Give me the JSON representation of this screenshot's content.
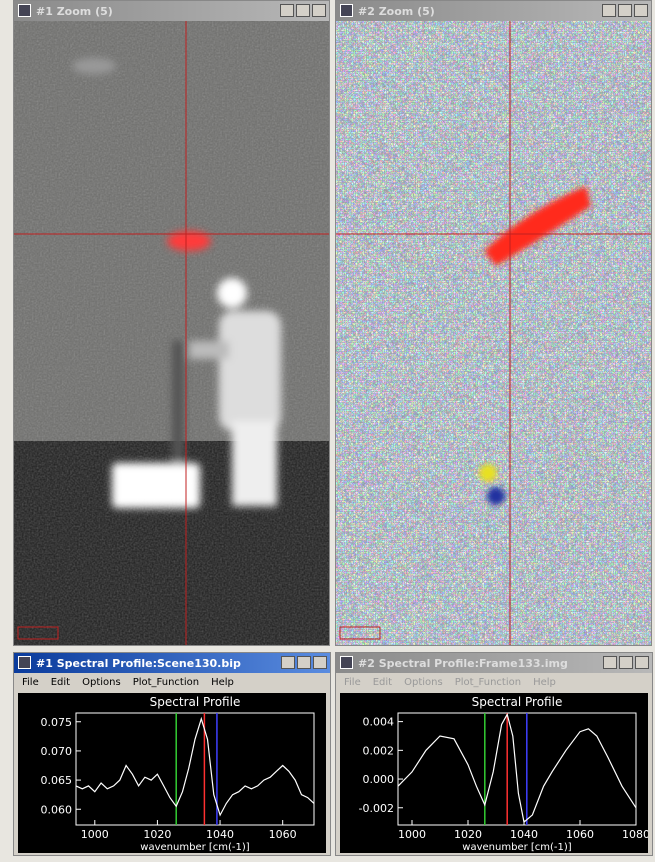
{
  "zoom_windows": [
    {
      "title": "#1 Zoom (5)"
    },
    {
      "title": "#2 Zoom (5)"
    }
  ],
  "spectral_windows": [
    {
      "title": "#1 Spectral Profile:Scene130.bip",
      "menu": [
        "File",
        "Edit",
        "Options",
        "Plot_Function",
        "Help"
      ],
      "chart": {
        "type": "line",
        "title": "Spectral Profile",
        "x_label": "wavenumber [cm(-1)]",
        "color": "#ffffff",
        "x": [
          994,
          996,
          998,
          1000,
          1002,
          1004,
          1006,
          1008,
          1010,
          1012,
          1014,
          1016,
          1018,
          1020,
          1022,
          1024,
          1026,
          1028,
          1030,
          1032,
          1034,
          1036,
          1038,
          1040,
          1042,
          1044,
          1046,
          1048,
          1050,
          1052,
          1054,
          1056,
          1058,
          1060,
          1062,
          1064,
          1066,
          1068,
          1070
        ],
        "y": [
          0.064,
          0.0635,
          0.064,
          0.063,
          0.0645,
          0.0635,
          0.064,
          0.065,
          0.0675,
          0.066,
          0.064,
          0.0655,
          0.065,
          0.066,
          0.064,
          0.062,
          0.0605,
          0.063,
          0.067,
          0.072,
          0.0755,
          0.072,
          0.0625,
          0.059,
          0.061,
          0.0625,
          0.063,
          0.064,
          0.0635,
          0.064,
          0.065,
          0.0655,
          0.0665,
          0.0675,
          0.0665,
          0.065,
          0.0625,
          0.062,
          0.061
        ],
        "marker_lines": [
          {
            "x": 1026,
            "color": "#33cc33"
          },
          {
            "x": 1035,
            "color": "#ff3030"
          },
          {
            "x": 1039,
            "color": "#4040ff"
          }
        ],
        "xlim": [
          994,
          1070
        ],
        "ylim": [
          0.0573,
          0.0765
        ],
        "xticks": [
          1000,
          1020,
          1040,
          1060
        ],
        "yticks": [
          {
            "value": 0.06,
            "label": "0.060"
          },
          0.065,
          {
            "value": 0.07,
            "label": "0.070"
          },
          0.075
        ]
      }
    },
    {
      "title": "#2 Spectral Profile:Frame133.img",
      "menu": [
        "File",
        "Edit",
        "Options",
        "Plot_Function",
        "Help"
      ],
      "chart": {
        "type": "line",
        "title": "Spectral Profile",
        "x_label": "wavenumber [cm(-1)]",
        "color": "#ffffff",
        "x": [
          995,
          1000,
          1005,
          1010,
          1015,
          1020,
          1023,
          1026,
          1029,
          1032,
          1034,
          1036,
          1038,
          1040,
          1043,
          1047,
          1050,
          1055,
          1060,
          1063,
          1066,
          1070,
          1075,
          1080
        ],
        "y": [
          -0.0005,
          0.0005,
          0.002,
          0.003,
          0.0028,
          0.001,
          -0.0005,
          -0.0018,
          0.0005,
          0.0038,
          0.0045,
          0.003,
          -0.001,
          -0.003,
          -0.0025,
          -0.0005,
          0.0005,
          0.002,
          0.0033,
          0.0035,
          0.003,
          0.0015,
          -0.0005,
          -0.002
        ],
        "marker_lines": [
          {
            "x": 1026,
            "color": "#33cc33"
          },
          {
            "x": 1034,
            "color": "#ff3030"
          },
          {
            "x": 1041,
            "color": "#4040ff"
          }
        ],
        "xlim": [
          995,
          1080
        ],
        "ylim": [
          -0.0032,
          0.0046
        ],
        "xticks": [
          1000,
          1020,
          1040,
          1060,
          1080
        ],
        "yticks": [
          -0.002,
          {
            "value": 0,
            "label": "0.000"
          },
          0.002,
          0.004
        ]
      }
    }
  ]
}
